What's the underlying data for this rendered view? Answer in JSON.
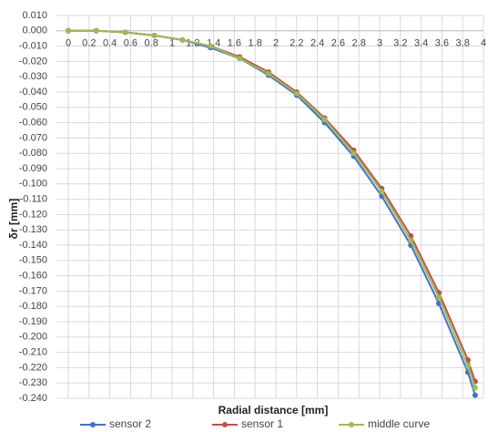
{
  "chart_data": {
    "type": "line",
    "x_label": "Radial distance [mm]",
    "y_label": "δr [mm]",
    "x": [
      0,
      0.27,
      0.55,
      0.83,
      1.1,
      1.37,
      1.65,
      1.93,
      2.2,
      2.47,
      2.75,
      3.02,
      3.3,
      3.57,
      3.85,
      3.92
    ],
    "series": [
      {
        "name": "sensor 2",
        "color": "#4472c4",
        "values": [
          0,
          0,
          -0.001,
          -0.003,
          -0.006,
          -0.011,
          -0.018,
          -0.029,
          -0.042,
          -0.06,
          -0.082,
          -0.108,
          -0.14,
          -0.178,
          -0.223,
          -0.238
        ]
      },
      {
        "name": "sensor 1",
        "color": "#c0504d",
        "values": [
          0,
          0,
          -0.001,
          -0.003,
          -0.006,
          -0.01,
          -0.017,
          -0.027,
          -0.04,
          -0.057,
          -0.078,
          -0.103,
          -0.134,
          -0.171,
          -0.215,
          -0.229
        ]
      },
      {
        "name": "middle curve",
        "color": "#9bbb59",
        "values": [
          0,
          0,
          -0.001,
          -0.003,
          -0.006,
          -0.01,
          -0.018,
          -0.028,
          -0.041,
          -0.058,
          -0.08,
          -0.105,
          -0.137,
          -0.174,
          -0.219,
          -0.233
        ]
      }
    ],
    "xlim": [
      0,
      4
    ],
    "xticks": [
      0,
      0.2,
      0.4,
      0.6,
      0.8,
      1,
      1.2,
      1.4,
      1.6,
      1.8,
      2,
      2.2,
      2.4,
      2.6,
      2.8,
      3,
      3.2,
      3.4,
      3.6,
      3.8,
      4
    ],
    "ylim": [
      -0.24,
      0.01
    ],
    "yticks": [
      {
        "value": 0.01,
        "label": "0.010"
      },
      {
        "value": 0,
        "label": "0.000"
      },
      {
        "value": -0.01,
        "label": "-0.010"
      },
      {
        "value": -0.02,
        "label": "-0.020"
      },
      {
        "value": -0.03,
        "label": "-0.030"
      },
      {
        "value": -0.04,
        "label": "-0.040"
      },
      {
        "value": -0.05,
        "label": "-0.050"
      },
      {
        "value": -0.06,
        "label": "-0.060"
      },
      {
        "value": -0.07,
        "label": "-0.070"
      },
      {
        "value": -0.08,
        "label": "-0.080"
      },
      {
        "value": -0.09,
        "label": "-0.090"
      },
      {
        "value": -0.1,
        "label": "-0.100"
      },
      {
        "value": -0.11,
        "label": "-0.110"
      },
      {
        "value": -0.12,
        "label": "-0.120"
      },
      {
        "value": -0.13,
        "label": "-0.130"
      },
      {
        "value": -0.14,
        "label": "-0.140"
      },
      {
        "value": -0.15,
        "label": "-0.150"
      },
      {
        "value": -0.16,
        "label": "-0.160"
      },
      {
        "value": -0.17,
        "label": "-0.170"
      },
      {
        "value": -0.18,
        "label": "-0.180"
      },
      {
        "value": -0.19,
        "label": "-0.190"
      },
      {
        "value": -0.2,
        "label": "-0.200"
      },
      {
        "value": -0.21,
        "label": "-0.210"
      },
      {
        "value": -0.22,
        "label": "-0.220"
      },
      {
        "value": -0.23,
        "label": "-0.230"
      },
      {
        "value": -0.24,
        "label": "-0.240"
      }
    ],
    "grid": true,
    "legend": "bottom"
  }
}
